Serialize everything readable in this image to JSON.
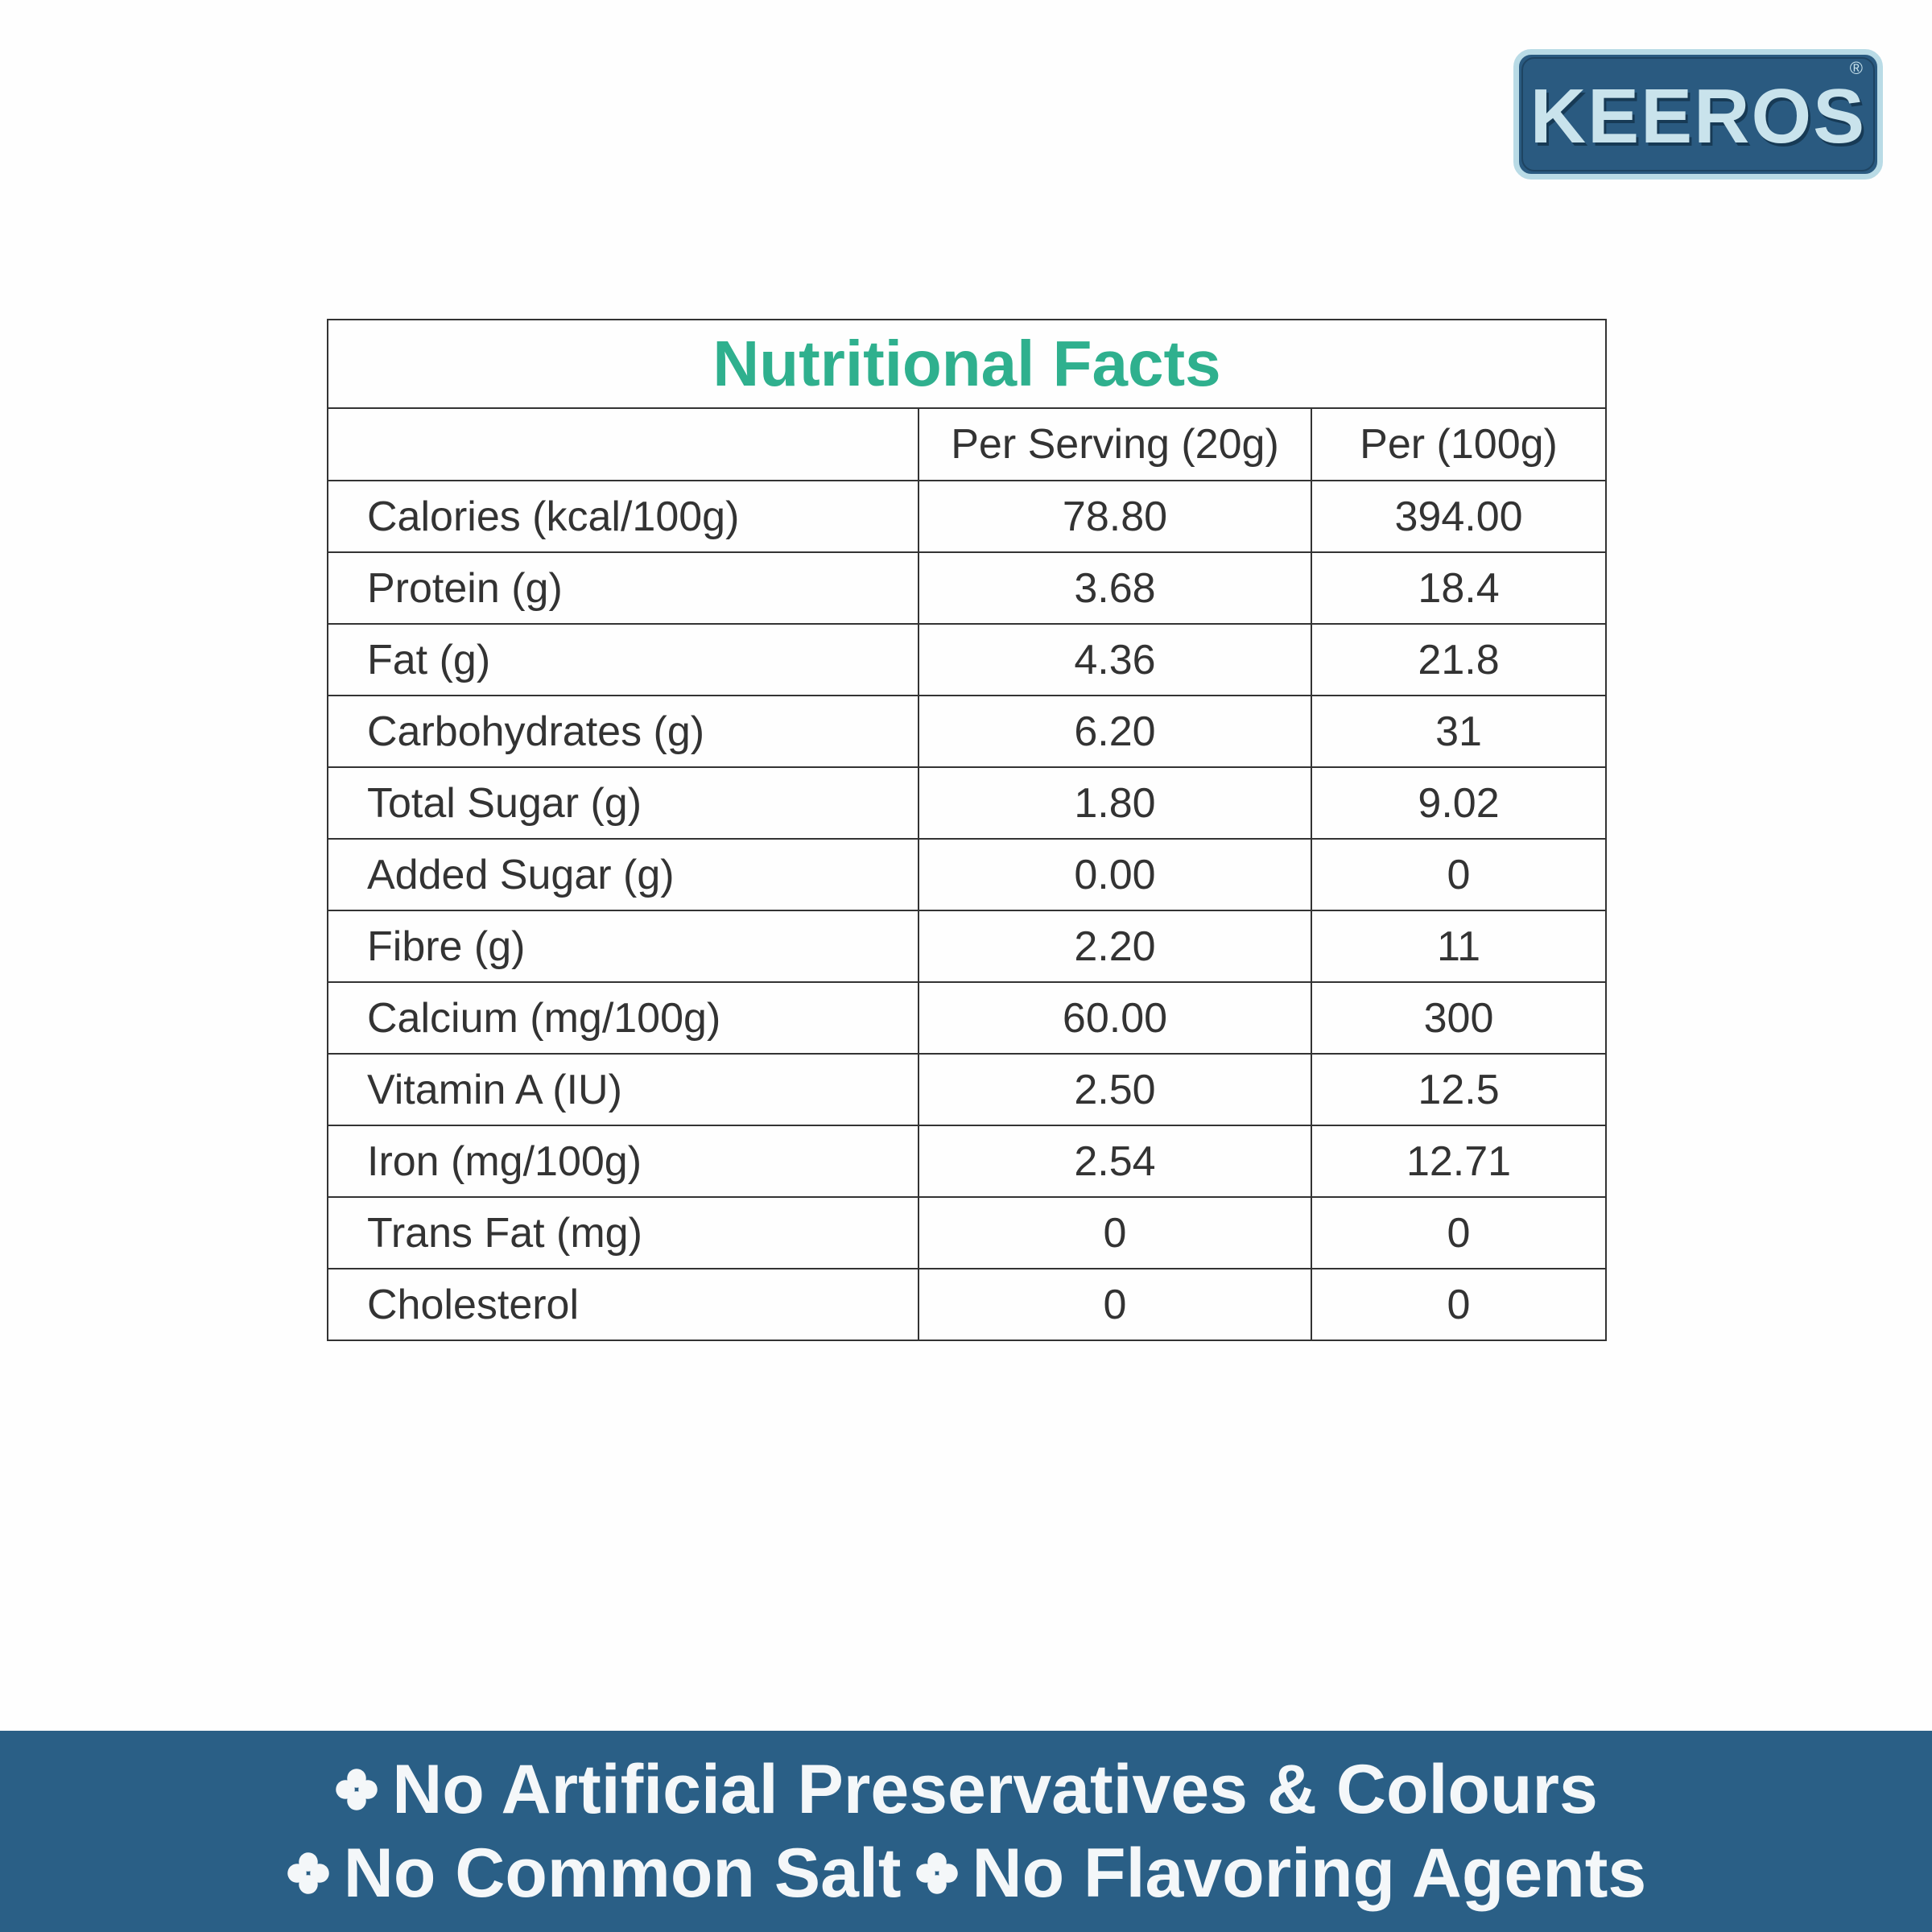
{
  "logo": {
    "brand": "KEEROS",
    "mark": "®"
  },
  "table": {
    "title": "Nutritional Facts",
    "headers": [
      "Per Serving (20g)",
      "Per (100g)"
    ],
    "rows": [
      [
        "Calories (kcal/100g)",
        "78.80",
        "394.00"
      ],
      [
        "Protein (g)",
        "3.68",
        "18.4"
      ],
      [
        "Fat (g)",
        "4.36",
        "21.8"
      ],
      [
        "Carbohydrates (g)",
        "6.20",
        "31"
      ],
      [
        "Total Sugar (g)",
        "1.80",
        "9.02"
      ],
      [
        "Added Sugar (g)",
        "0.00",
        "0"
      ],
      [
        "Fibre (g)",
        "2.20",
        "11"
      ],
      [
        "Calcium (mg/100g)",
        "60.00",
        "300"
      ],
      [
        "Vitamin A (IU)",
        "2.50",
        "12.5"
      ],
      [
        "Iron (mg/100g)",
        "2.54",
        "12.71"
      ],
      [
        "Trans Fat (mg)",
        "0",
        "0"
      ],
      [
        "Cholesterol",
        "0",
        "0"
      ]
    ]
  },
  "banner": {
    "lines": [
      [
        "No Artificial Preservatives & Colours"
      ],
      [
        "No Common Salt",
        "No Flavoring Agents"
      ]
    ]
  }
}
